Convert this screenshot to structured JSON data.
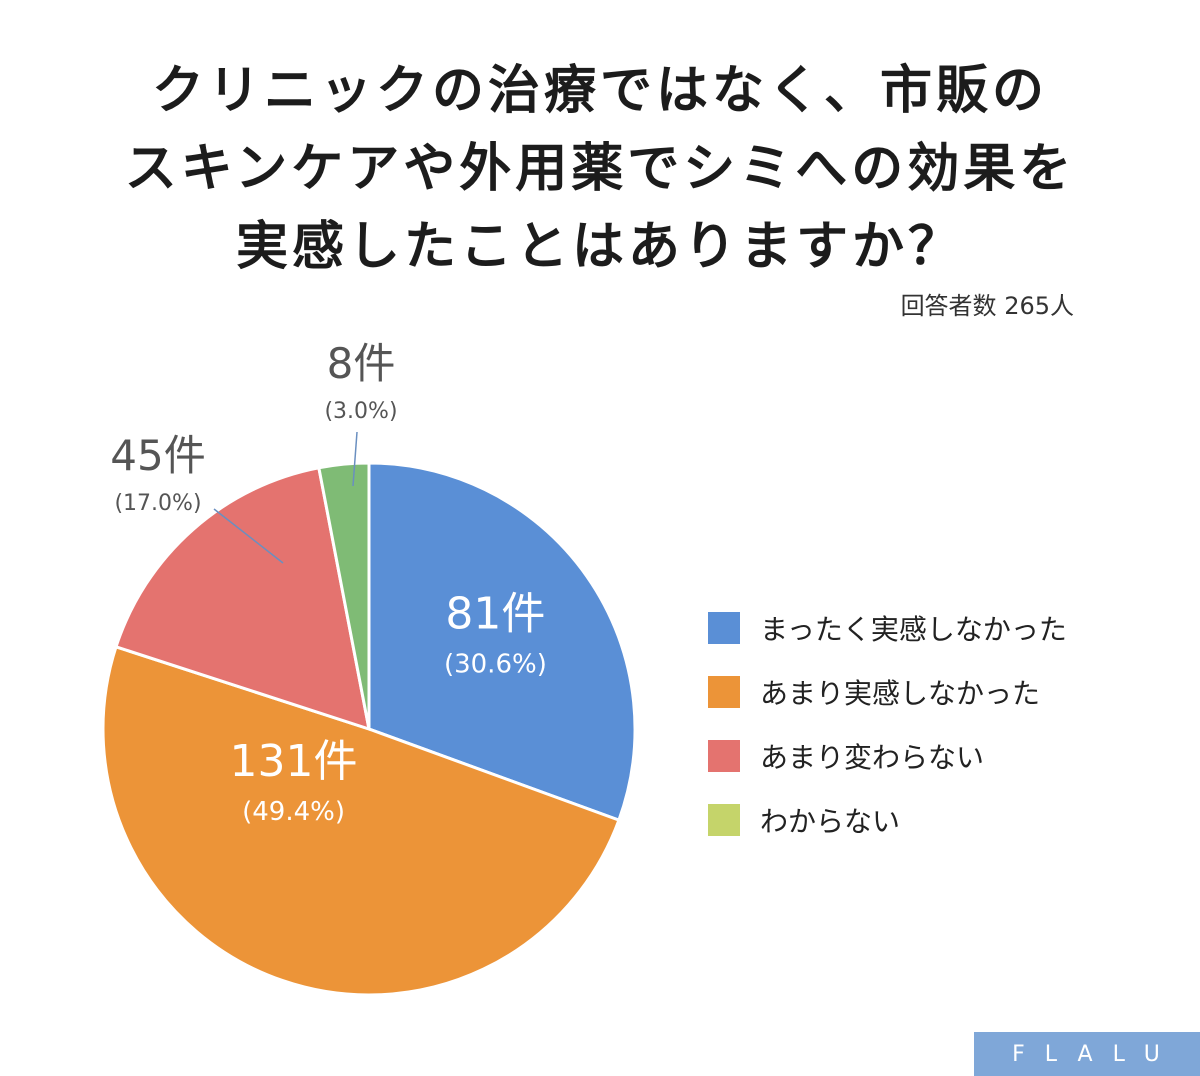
{
  "title_lines": [
    "クリニックの治療ではなく、市販の",
    "スキンケアや外用薬でシミへの効果を",
    "実感したことはありますか？"
  ],
  "respondents": "回答者数 265人",
  "logo": "FLALU",
  "colors": {
    "blue": "#5a8fd6",
    "orange": "#ec9438",
    "red": "#e4736f",
    "green": "#7fbb75",
    "legend_green": "#c5d46a",
    "inner_label": "#ffffff",
    "outer_label": "#555555"
  },
  "chart_data": {
    "type": "pie",
    "title": "クリニックの治療ではなく、市販のスキンケアや外用薬でシミへの効果を実感したことはありますか？",
    "total": 265,
    "slices": [
      {
        "name": "まったく実感しなかった",
        "count": 81,
        "percent": 30.6,
        "count_label": "81件",
        "percent_label": "(30.6%)",
        "color": "#5a8fd6",
        "legend_color": "#5a8fd6",
        "label_position": "inside"
      },
      {
        "name": "あまり実感しなかった",
        "count": 131,
        "percent": 49.4,
        "count_label": "131件",
        "percent_label": "(49.4%)",
        "color": "#ec9438",
        "legend_color": "#ec9438",
        "label_position": "inside"
      },
      {
        "name": "あまり変わらない",
        "count": 45,
        "percent": 17.0,
        "count_label": "45件",
        "percent_label": "(17.0%)",
        "color": "#e4736f",
        "legend_color": "#e4736f",
        "label_position": "outside"
      },
      {
        "name": "わからない",
        "count": 8,
        "percent": 3.0,
        "count_label": "8件",
        "percent_label": "(3.0%)",
        "color": "#7fbb75",
        "legend_color": "#c5d46a",
        "label_position": "outside"
      }
    ],
    "legend_position": "right"
  }
}
